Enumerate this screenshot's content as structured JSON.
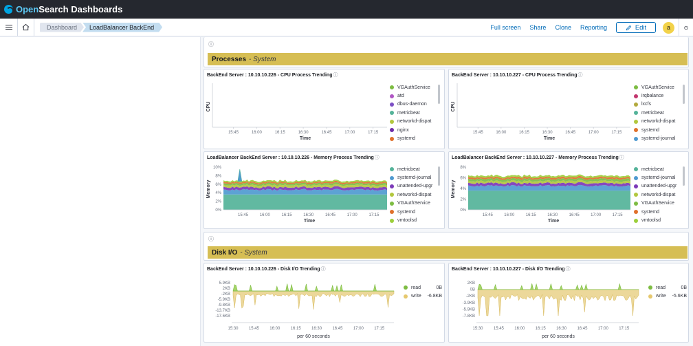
{
  "app": {
    "brand_open": "Open",
    "brand_rest": "Search Dashboards"
  },
  "breadcrumbs": [
    "Dashboard",
    "LoadBalancer BackEnd"
  ],
  "actions": {
    "fullscreen": "Full screen",
    "share": "Share",
    "clone": "Clone",
    "reporting": "Reporting",
    "edit": "Edit"
  },
  "user": {
    "avatar": "a"
  },
  "info_glyph": "ⓘ",
  "sections": [
    {
      "title": "Processes",
      "subtitle": "- System"
    },
    {
      "title": "Disk I/O",
      "subtitle": "- System"
    }
  ],
  "time_ticks": [
    "15:45",
    "16:00",
    "16:15",
    "16:30",
    "16:45",
    "17:00",
    "17:15"
  ],
  "disk_ticks": [
    "15:30",
    "15:45",
    "16:00",
    "16:15",
    "16:30",
    "16:45",
    "17:00",
    "17:15"
  ],
  "panels": {
    "cpu226": {
      "title": "BackEnd Server : 10.10.10.226 - CPU Process Trending",
      "ylabel": "CPU",
      "xlabel": "Time",
      "legend": [
        {
          "label": "VGAuthService",
          "color": "#7dbc42"
        },
        {
          "label": "atd",
          "color": "#b057c4"
        },
        {
          "label": "dbus-daemon",
          "color": "#7c4fc4"
        },
        {
          "label": "metricbeat",
          "color": "#54b399"
        },
        {
          "label": "networkd-dispat",
          "color": "#b2c73d"
        },
        {
          "label": "nginx",
          "color": "#6e2ca8"
        },
        {
          "label": "systemd",
          "color": "#e0702b"
        }
      ]
    },
    "cpu227": {
      "title": "BackEnd Server : 10.10.10.227 - CPU Process Trending",
      "ylabel": "CPU",
      "xlabel": "Time",
      "legend": [
        {
          "label": "VGAuthService",
          "color": "#7dbc42"
        },
        {
          "label": "irqbalance",
          "color": "#c2366e"
        },
        {
          "label": "lxcfs",
          "color": "#b2a93d"
        },
        {
          "label": "metricbeat",
          "color": "#54b399"
        },
        {
          "label": "networkd-dispat",
          "color": "#b2c73d"
        },
        {
          "label": "systemd",
          "color": "#e0702b"
        },
        {
          "label": "systemd-journal",
          "color": "#4f9ad0"
        }
      ]
    },
    "mem226": {
      "title": "LoadBalancer BackEnd Server : 10.10.10.226 - Memory Process Trending",
      "ylabel": "Memory",
      "xlabel": "Time",
      "yticks": [
        "10%",
        "8%",
        "6%",
        "4%",
        "2%",
        "0%"
      ],
      "legend": [
        {
          "label": "metricbeat",
          "color": "#54b399"
        },
        {
          "label": "systemd-journal",
          "color": "#4f9ad0"
        },
        {
          "label": "unattended-upgr",
          "color": "#7c3ab8"
        },
        {
          "label": "networkd-dispat",
          "color": "#b2c73d"
        },
        {
          "label": "VGAuthService",
          "color": "#7dbc42"
        },
        {
          "label": "systemd",
          "color": "#e0702b"
        },
        {
          "label": "vmtoolsd",
          "color": "#9ccf3a"
        }
      ]
    },
    "mem227": {
      "title": "LoadBalancer BackEnd Server : 10.10.10.227 - Memory Process Trending",
      "ylabel": "Memory",
      "xlabel": "Time",
      "yticks": [
        "8%",
        "6%",
        "4%",
        "2%",
        "0%"
      ],
      "legend": [
        {
          "label": "metricbeat",
          "color": "#54b399"
        },
        {
          "label": "systemd-journal",
          "color": "#4f9ad0"
        },
        {
          "label": "unattended-upgr",
          "color": "#7c3ab8"
        },
        {
          "label": "networkd-dispat",
          "color": "#b2c73d"
        },
        {
          "label": "VGAuthService",
          "color": "#7dbc42"
        },
        {
          "label": "systemd",
          "color": "#e0702b"
        },
        {
          "label": "vmtoolsd",
          "color": "#9ccf3a"
        }
      ]
    },
    "disk226": {
      "title": "BackEnd Server : 10.10.10.226 - Disk I/O Trending",
      "xlabel": "per 60 seconds",
      "yticks": [
        "5.9KB",
        "2KB",
        "-2KB",
        "-5.9KB",
        "-9.8KB",
        "-13.7KB",
        "-17.6KB"
      ],
      "legend": [
        {
          "label": "read",
          "value": "0B",
          "color": "#7dbc42"
        },
        {
          "label": "write",
          "value": "-6.8KB",
          "color": "#e6c86e"
        }
      ]
    },
    "disk227": {
      "title": "BackEnd Server : 10.10.10.227 - Disk I/O Trending",
      "xlabel": "per 60 seconds",
      "yticks": [
        "2KB",
        "0B",
        "-2KB",
        "-3.9KB",
        "-5.9KB",
        "-7.8KB"
      ],
      "legend": [
        {
          "label": "read",
          "value": "0B",
          "color": "#7dbc42"
        },
        {
          "label": "write",
          "value": "-5.6KB",
          "color": "#e6c86e"
        }
      ]
    }
  },
  "chart_data": [
    {
      "type": "area",
      "title": "LoadBalancer BackEnd Server : 10.10.10.226 - Memory Process Trending",
      "ylabel": "Memory",
      "xlabel": "Time",
      "ylim": [
        0,
        10
      ],
      "series": [
        {
          "name": "metricbeat",
          "value": 3.6
        },
        {
          "name": "systemd-journal",
          "value": 1.1
        },
        {
          "name": "unattended-upgr",
          "value": 0.6
        },
        {
          "name": "networkd-dispat",
          "value": 0.5
        },
        {
          "name": "VGAuthService",
          "value": 0.4
        },
        {
          "name": "systemd",
          "value": 0.3
        },
        {
          "name": "vmtoolsd",
          "value": 0.3
        }
      ],
      "spike": {
        "x": "15:40",
        "value": 9.5
      }
    },
    {
      "type": "area",
      "title": "LoadBalancer BackEnd Server : 10.10.10.227 - Memory Process Trending",
      "ylabel": "Memory",
      "xlabel": "Time",
      "ylim": [
        0,
        8
      ],
      "series": [
        {
          "name": "metricbeat",
          "value": 3.6
        },
        {
          "name": "systemd-journal",
          "value": 0.9
        },
        {
          "name": "unattended-upgr",
          "value": 0.5
        },
        {
          "name": "networkd-dispat",
          "value": 0.4
        },
        {
          "name": "VGAuthService",
          "value": 0.4
        },
        {
          "name": "systemd",
          "value": 0.3
        },
        {
          "name": "vmtoolsd",
          "value": 0.3
        }
      ]
    },
    {
      "type": "area",
      "title": "BackEnd Server : 10.10.10.226 - Disk I/O Trending",
      "xlabel": "per 60 seconds",
      "ylim": [
        -17.6,
        5.9
      ],
      "series": [
        {
          "name": "read",
          "value": 0
        },
        {
          "name": "write",
          "value": -6.8
        }
      ]
    },
    {
      "type": "area",
      "title": "BackEnd Server : 10.10.10.227 - Disk I/O Trending",
      "xlabel": "per 60 seconds",
      "ylim": [
        -7.8,
        2
      ],
      "series": [
        {
          "name": "read",
          "value": 0
        },
        {
          "name": "write",
          "value": -5.6
        }
      ]
    }
  ]
}
